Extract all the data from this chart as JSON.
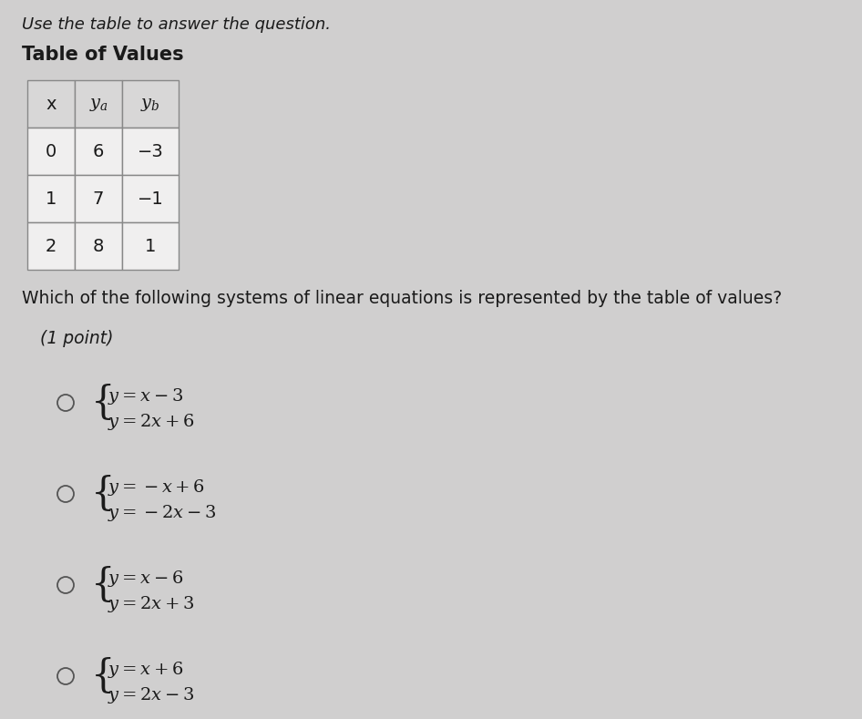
{
  "bg_color": "#d0cfcf",
  "cell_bg": "#f0efef",
  "header_bg": "#d8d7d7",
  "text_color": "#1a1a1a",
  "italic_text": "Use the table to answer the question.",
  "bold_title": "Table of Values",
  "table_headers": [
    "x",
    "$y_a$",
    "$y_b$"
  ],
  "table_rows": [
    [
      "0",
      "6",
      "−3"
    ],
    [
      "1",
      "7",
      "−1"
    ],
    [
      "2",
      "8",
      "1"
    ]
  ],
  "question": "Which of the following systems of linear equations is represented by the table of values?",
  "point_label": "(1 point)",
  "options": [
    [
      "$y = x - 3$",
      "$y = 2x + 6$"
    ],
    [
      "$y = -x + 6$",
      "$y = -2x - 3$"
    ],
    [
      "$y = x - 6$",
      "$y = 2x + 3$"
    ],
    [
      "$y = x + 6$",
      "$y = 2x - 3$"
    ]
  ]
}
